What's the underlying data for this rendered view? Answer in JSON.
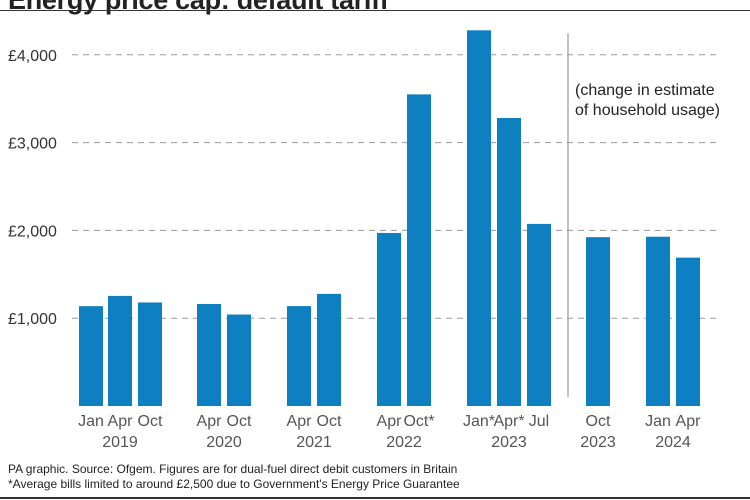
{
  "title": "Energy price cap: default tariff",
  "chart_data": {
    "type": "bar",
    "unit": "£",
    "ylim": [
      0,
      4300
    ],
    "yticks": [
      {
        "value": 1000,
        "label": "£1,000"
      },
      {
        "value": 2000,
        "label": "£2,000"
      },
      {
        "value": 3000,
        "label": "£3,000"
      },
      {
        "value": 4000,
        "label": "£4,000"
      }
    ],
    "grid": true,
    "color": "#0e7fc0",
    "bars": [
      {
        "label": "Jan",
        "year": "2019",
        "value": 1137
      },
      {
        "label": "Apr",
        "year": "2019",
        "value": 1254
      },
      {
        "label": "Oct",
        "year": "2019",
        "value": 1179
      },
      {
        "label": "Apr",
        "year": "2020",
        "value": 1162
      },
      {
        "label": "Oct",
        "year": "2020",
        "value": 1042
      },
      {
        "label": "Apr",
        "year": "2021",
        "value": 1138
      },
      {
        "label": "Oct",
        "year": "2021",
        "value": 1277
      },
      {
        "label": "Apr",
        "year": "2022",
        "value": 1971
      },
      {
        "label": "Oct*",
        "year": "2022",
        "value": 3549
      },
      {
        "label": "Jan*",
        "year": "2023",
        "value": 4279
      },
      {
        "label": "Apr*",
        "year": "2023",
        "value": 3280
      },
      {
        "label": "Jul",
        "year": "2023",
        "value": 2074
      },
      {
        "label": "Oct",
        "year": "2023",
        "value": 1923
      },
      {
        "label": "Jan",
        "year": "2024",
        "value": 1928
      },
      {
        "label": "Apr",
        "year": "2024",
        "value": 1690
      }
    ],
    "year_labels": [
      "2019",
      "2020",
      "2021",
      "2022",
      "2023",
      "2023",
      "2024"
    ],
    "annotation": {
      "line1": "(change in estimate",
      "line2": "of household usage)"
    }
  },
  "footer": {
    "line1": "PA graphic. Source: Ofgem. Figures are for dual-fuel direct debit customers in Britain",
    "line2": "*Average bills limited to around £2,500 due to Government's Energy Price Guarantee"
  }
}
